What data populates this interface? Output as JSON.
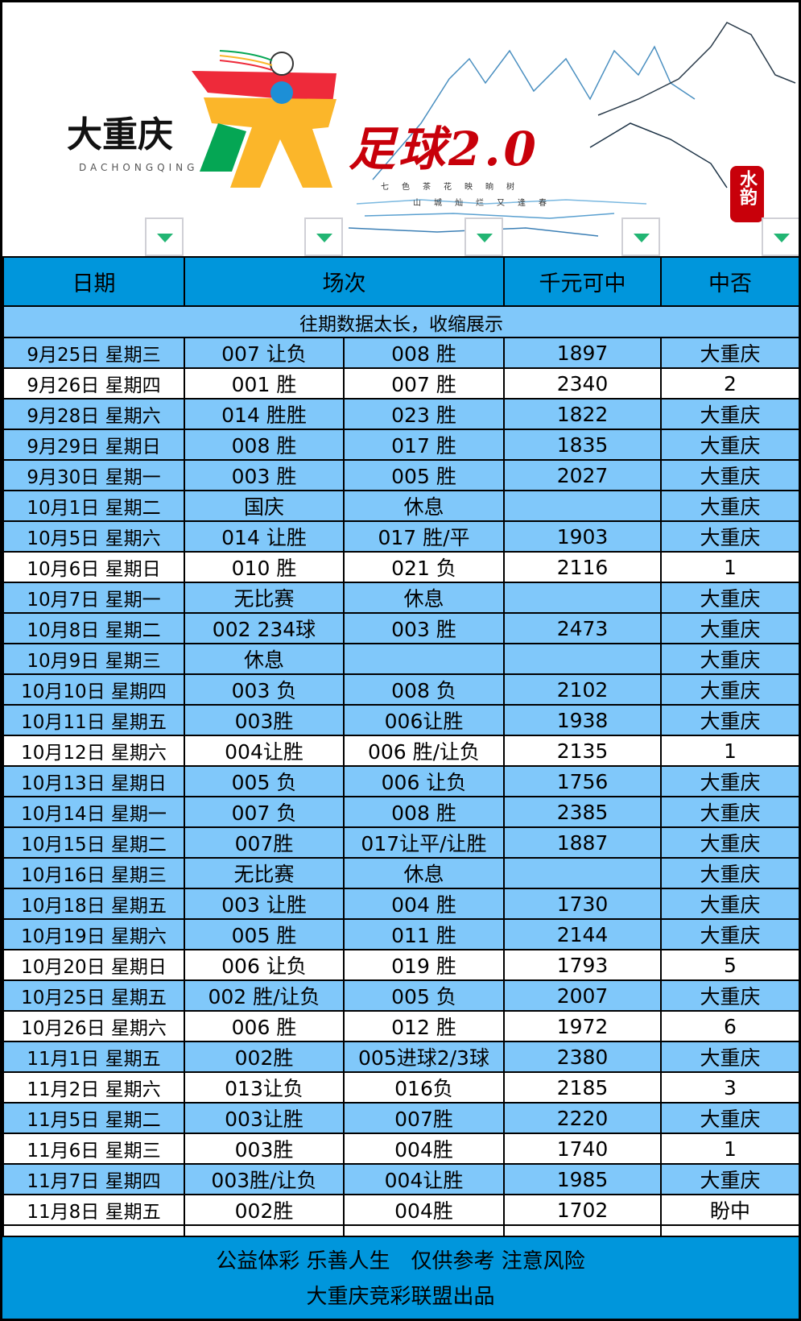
{
  "banner": {
    "brand_cn": "大重庆",
    "brand_en": "DACHONGQING",
    "title": "足球2.0",
    "poem_1": "七色茶花映晌树",
    "poem_2": "山城灿烂又逢春",
    "seal": "水韵"
  },
  "colors": {
    "header": "#0096dc",
    "highlight": "#80c8fa",
    "filter_arrow": "#22b573",
    "title_red": "#c8000a"
  },
  "table": {
    "headers": {
      "date": "日期",
      "match": "场次",
      "prize": "千元可中",
      "result": "中否"
    },
    "info": "往期数据太长，收缩展示",
    "rows": [
      {
        "date": "9月25日 星期三",
        "a": "007 让负",
        "b": "008 胜",
        "prize": "1897",
        "result": "大重庆",
        "hit": true
      },
      {
        "date": "9月26日 星期四",
        "a": "001 胜",
        "b": "007 胜",
        "prize": "2340",
        "result": "2",
        "hit": false
      },
      {
        "date": "9月28日 星期六",
        "a": "014 胜胜",
        "b": "023 胜",
        "prize": "1822",
        "result": "大重庆",
        "hit": true
      },
      {
        "date": "9月29日 星期日",
        "a": "008 胜",
        "b": "017 胜",
        "prize": "1835",
        "result": "大重庆",
        "hit": true
      },
      {
        "date": "9月30日 星期一",
        "a": "003 胜",
        "b": "005 胜",
        "prize": "2027",
        "result": "大重庆",
        "hit": true
      },
      {
        "date": "10月1日 星期二",
        "a": "国庆",
        "b": "休息",
        "prize": "",
        "result": "大重庆",
        "hit": true
      },
      {
        "date": "10月5日 星期六",
        "a": "014 让胜",
        "b": "017 胜/平",
        "prize": "1903",
        "result": "大重庆",
        "hit": true
      },
      {
        "date": "10月6日 星期日",
        "a": "010 胜",
        "b": "021 负",
        "prize": "2116",
        "result": "1",
        "hit": false
      },
      {
        "date": "10月7日 星期一",
        "a": "无比赛",
        "b": "休息",
        "prize": "",
        "result": "大重庆",
        "hit": true
      },
      {
        "date": "10月8日 星期二",
        "a": "002 234球",
        "b": "003 胜",
        "prize": "2473",
        "result": "大重庆",
        "hit": true
      },
      {
        "date": "10月9日 星期三",
        "a": "休息",
        "b": "",
        "prize": "",
        "result": "大重庆",
        "hit": true
      },
      {
        "date": "10月10日 星期四",
        "a": "003 负",
        "b": "008 负",
        "prize": "2102",
        "result": "大重庆",
        "hit": true
      },
      {
        "date": "10月11日 星期五",
        "a": "003胜",
        "b": "006让胜",
        "prize": "1938",
        "result": "大重庆",
        "hit": true
      },
      {
        "date": "10月12日 星期六",
        "a": "004让胜",
        "b": "006 胜/让负",
        "prize": "2135",
        "result": "1",
        "hit": false
      },
      {
        "date": "10月13日 星期日",
        "a": "005 负",
        "b": "006 让负",
        "prize": "1756",
        "result": "大重庆",
        "hit": true
      },
      {
        "date": "10月14日 星期一",
        "a": "007 负",
        "b": "008 胜",
        "prize": "2385",
        "result": "大重庆",
        "hit": true
      },
      {
        "date": "10月15日 星期二",
        "a": "007胜",
        "b": "017让平/让胜",
        "prize": "1887",
        "result": "大重庆",
        "hit": true
      },
      {
        "date": "10月16日 星期三",
        "a": "无比赛",
        "b": "休息",
        "prize": "",
        "result": "大重庆",
        "hit": true
      },
      {
        "date": "10月18日 星期五",
        "a": "003 让胜",
        "b": "004 胜",
        "prize": "1730",
        "result": "大重庆",
        "hit": true
      },
      {
        "date": "10月19日 星期六",
        "a": "005 胜",
        "b": "011 胜",
        "prize": "2144",
        "result": "大重庆",
        "hit": true
      },
      {
        "date": "10月20日 星期日",
        "a": "006 让负",
        "b": "019 胜",
        "prize": "1793",
        "result": "5",
        "hit": false
      },
      {
        "date": "10月25日 星期五",
        "a": "002 胜/让负",
        "b": "005 负",
        "prize": "2007",
        "result": "大重庆",
        "hit": true
      },
      {
        "date": "10月26日 星期六",
        "a": "006 胜",
        "b": "012 胜",
        "prize": "1972",
        "result": "6",
        "hit": false
      },
      {
        "date": "11月1日 星期五",
        "a": "002胜",
        "b": "005进球2/3球",
        "prize": "2380",
        "result": "大重庆",
        "hit": true
      },
      {
        "date": "11月2日 星期六",
        "a": "013让负",
        "b": "016负",
        "prize": "2185",
        "result": "3",
        "hit": false
      },
      {
        "date": "11月5日 星期二",
        "a": "003让胜",
        "b": "007胜",
        "prize": "2220",
        "result": "大重庆",
        "hit": true
      },
      {
        "date": "11月6日 星期三",
        "a": "003胜",
        "b": "004胜",
        "prize": "1740",
        "result": "1",
        "hit": false
      },
      {
        "date": "11月7日 星期四",
        "a": "003胜/让负",
        "b": "004让胜",
        "prize": "1985",
        "result": "大重庆",
        "hit": true
      },
      {
        "date": "11月8日 星期五",
        "a": "002胜",
        "b": "004胜",
        "prize": "1702",
        "result": "盼中",
        "hit": false
      }
    ]
  },
  "footer": {
    "line1": "公益体彩 乐善人生　仅供参考 注意风险",
    "line2": "大重庆竞彩联盟出品"
  }
}
